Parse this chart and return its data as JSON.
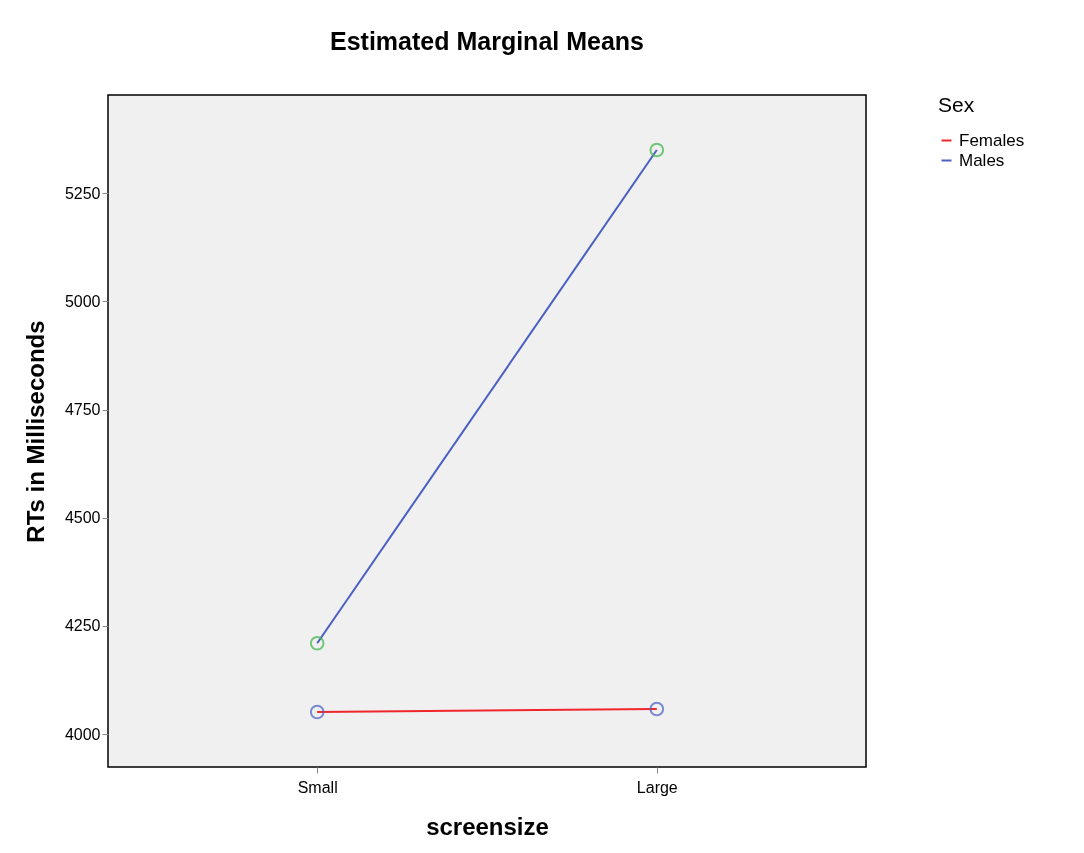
{
  "chart_data": {
    "type": "line",
    "title": "Estimated Marginal Means",
    "xlabel": "screensize",
    "ylabel": "RTs in Milliseconds",
    "legend_title": "Sex",
    "categories": [
      "Small",
      "Large"
    ],
    "series": [
      {
        "name": "Females",
        "color": "#f0262c",
        "colors": [
          "#4a5fc1",
          "#4a5fc1"
        ],
        "values": [
          4051,
          4058
        ]
      },
      {
        "name": "Males",
        "color": "#4a5fc1",
        "colors": [
          "#3cb44b",
          "#3cb44b"
        ],
        "values": [
          4210,
          5350
        ]
      }
    ],
    "ylim": [
      3924,
      5477
    ],
    "yticks": [
      4000,
      4250,
      4500,
      4750,
      5000,
      5250
    ],
    "grid": false,
    "legend": "top right",
    "marker": "circle",
    "line_style": "solid"
  }
}
